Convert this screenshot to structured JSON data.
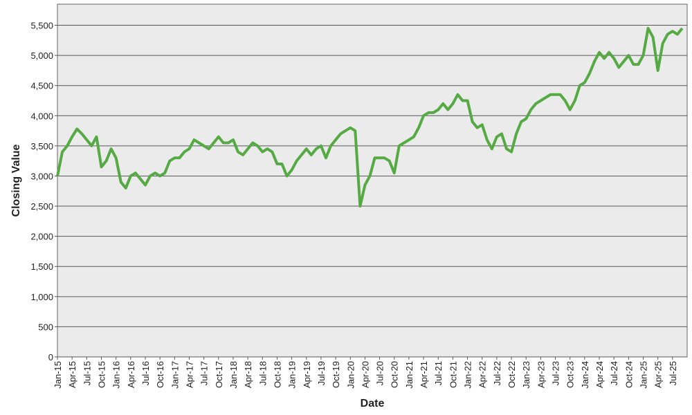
{
  "chart_data": {
    "type": "line",
    "x_label": "Date",
    "y_label": "Closing Value",
    "x": [
      "2015-01",
      "2015-02",
      "2015-03",
      "2015-04",
      "2015-05",
      "2015-06",
      "2015-07",
      "2015-08",
      "2015-09",
      "2015-10",
      "2015-11",
      "2015-12",
      "2016-01",
      "2016-02",
      "2016-03",
      "2016-04",
      "2016-05",
      "2016-06",
      "2016-07",
      "2016-08",
      "2016-09",
      "2016-10",
      "2016-11",
      "2016-12",
      "2017-01",
      "2017-02",
      "2017-03",
      "2017-04",
      "2017-05",
      "2017-06",
      "2017-07",
      "2017-08",
      "2017-09",
      "2017-10",
      "2017-11",
      "2017-12",
      "2018-01",
      "2018-02",
      "2018-03",
      "2018-04",
      "2018-05",
      "2018-06",
      "2018-07",
      "2018-08",
      "2018-09",
      "2018-10",
      "2018-11",
      "2018-12",
      "2019-01",
      "2019-02",
      "2019-03",
      "2019-04",
      "2019-05",
      "2019-06",
      "2019-07",
      "2019-08",
      "2019-09",
      "2019-10",
      "2019-11",
      "2019-12",
      "2020-01",
      "2020-02",
      "2020-03",
      "2020-04",
      "2020-05",
      "2020-06",
      "2020-07",
      "2020-08",
      "2020-09",
      "2020-10",
      "2020-11",
      "2020-12",
      "2021-01",
      "2021-02",
      "2021-03",
      "2021-04",
      "2021-05",
      "2021-06",
      "2021-07",
      "2021-08",
      "2021-09",
      "2021-10",
      "2021-11",
      "2021-12",
      "2022-01",
      "2022-02",
      "2022-03",
      "2022-04",
      "2022-05",
      "2022-06",
      "2022-07",
      "2022-08",
      "2022-09",
      "2022-10",
      "2022-11",
      "2022-12",
      "2023-01",
      "2023-02",
      "2023-03",
      "2023-04",
      "2023-05",
      "2023-06",
      "2023-07",
      "2023-08",
      "2023-09",
      "2023-10",
      "2023-11",
      "2023-12",
      "2024-01",
      "2024-02",
      "2024-03",
      "2024-04",
      "2024-05",
      "2024-06",
      "2024-07",
      "2024-08",
      "2024-09",
      "2024-10",
      "2024-11",
      "2024-12",
      "2025-01",
      "2025-02",
      "2025-03",
      "2025-04",
      "2025-05",
      "2025-06",
      "2025-07",
      "2025-08",
      "2025-09"
    ],
    "series": [
      {
        "name": "Closing Value",
        "color": "#55aa44",
        "values": [
          3000,
          3400,
          3500,
          3650,
          3780,
          3700,
          3600,
          3500,
          3650,
          3150,
          3250,
          3450,
          3300,
          2900,
          2800,
          3000,
          3050,
          2950,
          2850,
          3000,
          3050,
          3000,
          3050,
          3250,
          3300,
          3300,
          3400,
          3450,
          3600,
          3550,
          3500,
          3450,
          3550,
          3650,
          3550,
          3550,
          3600,
          3400,
          3350,
          3450,
          3550,
          3500,
          3400,
          3450,
          3400,
          3200,
          3200,
          3000,
          3100,
          3250,
          3350,
          3450,
          3350,
          3450,
          3500,
          3300,
          3500,
          3600,
          3700,
          3750,
          3800,
          3750,
          2500,
          2850,
          3000,
          3300,
          3300,
          3300,
          3250,
          3050,
          3500,
          3550,
          3600,
          3650,
          3800,
          4000,
          4050,
          4050,
          4100,
          4200,
          4100,
          4200,
          4350,
          4250,
          4250,
          3900,
          3800,
          3850,
          3600,
          3450,
          3650,
          3700,
          3450,
          3400,
          3700,
          3900,
          3950,
          4100,
          4200,
          4250,
          4300,
          4350,
          4350,
          4350,
          4250,
          4100,
          4250,
          4500,
          4550,
          4700,
          4900,
          5050,
          4950,
          5050,
          4950,
          4800,
          4900,
          5000,
          4850,
          4850,
          5000,
          5450,
          5300,
          4750,
          5200,
          5350,
          5400,
          5350,
          5450
        ]
      }
    ],
    "xlim": [
      "2015-01",
      "2025-10"
    ],
    "xticks": [
      {
        "value": "2015-01",
        "label": "Jan-15"
      },
      {
        "value": "2015-04",
        "label": "Apr-15"
      },
      {
        "value": "2015-07",
        "label": "Jul-15"
      },
      {
        "value": "2015-10",
        "label": "Oct-15"
      },
      {
        "value": "2016-01",
        "label": "Jan-16"
      },
      {
        "value": "2016-04",
        "label": "Apr-16"
      },
      {
        "value": "2016-07",
        "label": "Jul-16"
      },
      {
        "value": "2016-10",
        "label": "Oct-16"
      },
      {
        "value": "2017-01",
        "label": "Jan-17"
      },
      {
        "value": "2017-04",
        "label": "Apr-17"
      },
      {
        "value": "2017-07",
        "label": "Jul-17"
      },
      {
        "value": "2017-10",
        "label": "Oct-17"
      },
      {
        "value": "2018-01",
        "label": "Jan-18"
      },
      {
        "value": "2018-04",
        "label": "Apr-18"
      },
      {
        "value": "2018-07",
        "label": "Jul-18"
      },
      {
        "value": "2018-10",
        "label": "Oct-18"
      },
      {
        "value": "2019-01",
        "label": "Jan-19"
      },
      {
        "value": "2019-04",
        "label": "Apr-19"
      },
      {
        "value": "2019-07",
        "label": "Jul-19"
      },
      {
        "value": "2019-10",
        "label": "Oct-19"
      },
      {
        "value": "2020-01",
        "label": "Jan-20"
      },
      {
        "value": "2020-04",
        "label": "Apr-20"
      },
      {
        "value": "2020-07",
        "label": "Jul-20"
      },
      {
        "value": "2020-10",
        "label": "Oct-20"
      },
      {
        "value": "2021-01",
        "label": "Jan-21"
      },
      {
        "value": "2021-04",
        "label": "Apr-21"
      },
      {
        "value": "2021-07",
        "label": "Jul-21"
      },
      {
        "value": "2021-10",
        "label": "Oct-21"
      },
      {
        "value": "2022-01",
        "label": "Jan-22"
      },
      {
        "value": "2022-04",
        "label": "Apr-22"
      },
      {
        "value": "2022-07",
        "label": "Jul-22"
      },
      {
        "value": "2022-10",
        "label": "Oct-22"
      },
      {
        "value": "2023-01",
        "label": "Jan-23"
      },
      {
        "value": "2023-04",
        "label": "Apr-23"
      },
      {
        "value": "2023-07",
        "label": "Jul-23"
      },
      {
        "value": "2023-10",
        "label": "Oct-23"
      },
      {
        "value": "2024-01",
        "label": "Jan-24"
      },
      {
        "value": "2024-04",
        "label": "Apr-24"
      },
      {
        "value": "2024-07",
        "label": "Jul-24"
      },
      {
        "value": "2024-10",
        "label": "Oct-24"
      },
      {
        "value": "2025-01",
        "label": "Jan-25"
      },
      {
        "value": "2025-04",
        "label": "Apr-25"
      },
      {
        "value": "2025-07",
        "label": "Jul-25"
      }
    ],
    "ylim": [
      0,
      5850
    ],
    "yticks": [
      0,
      500,
      {
        "value": 1000,
        "label": "1,000"
      },
      {
        "value": 1500,
        "label": "1,500"
      },
      {
        "value": 2000,
        "label": "2,000"
      },
      {
        "value": 2500,
        "label": "2,500"
      },
      {
        "value": 3000,
        "label": "3,000"
      },
      {
        "value": 3500,
        "label": "3,500"
      },
      {
        "value": 4000,
        "label": "4,000"
      },
      {
        "value": 4500,
        "label": "4,500"
      },
      {
        "value": 5000,
        "label": "5,000"
      },
      {
        "value": 5500,
        "label": "5,500"
      }
    ],
    "grid": true
  }
}
